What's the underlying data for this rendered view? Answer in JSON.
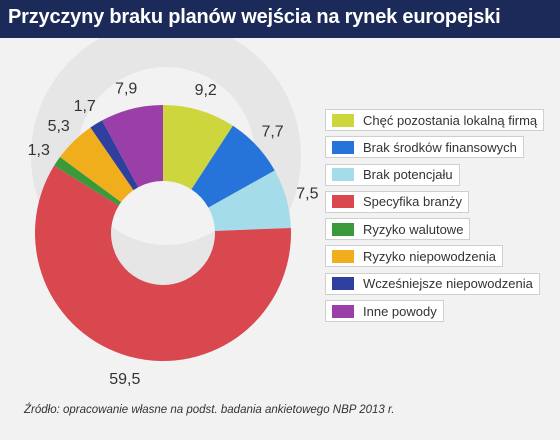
{
  "header": {
    "title": "Przyczyny braku planów wejścia na rynek europejski"
  },
  "chart_data": {
    "type": "pie",
    "variant": "donut",
    "title": "Przyczyny braku planów wejścia na rynek europejski",
    "slices": [
      {
        "label": "Chęć pozostania lokalną firmą",
        "value": 9.2,
        "display": "9,2",
        "color": "#cdd63c"
      },
      {
        "label": "Brak środków finansowych",
        "value": 7.7,
        "display": "7,7",
        "color": "#2673d9"
      },
      {
        "label": "Brak potencjału",
        "value": 7.5,
        "display": "7,5",
        "color": "#a5dcea"
      },
      {
        "label": "Specyfika branży",
        "value": 59.5,
        "display": "59,5",
        "color": "#d9474f"
      },
      {
        "label": "Ryzyko walutowe",
        "value": 1.3,
        "display": "1,3",
        "color": "#3a9a3a"
      },
      {
        "label": "Ryzyko niepowodzenia",
        "value": 5.3,
        "display": "5,3",
        "color": "#f0ad1c"
      },
      {
        "label": "Wcześniejsze niepowodzenia",
        "value": 1.7,
        "display": "1,7",
        "color": "#2e3f9e"
      },
      {
        "label": "Inne powody",
        "value": 7.9,
        "display": "7,9",
        "color": "#9b3fa8"
      }
    ],
    "legend_position": "right"
  },
  "footer": {
    "source": "Źródło: opracowanie własne na podst. badania ankietowego NBP 2013 r."
  },
  "colors": {
    "header_bg": "#1b2a58",
    "background": "#f2f2f2",
    "watermark": "#e6e6e6"
  }
}
